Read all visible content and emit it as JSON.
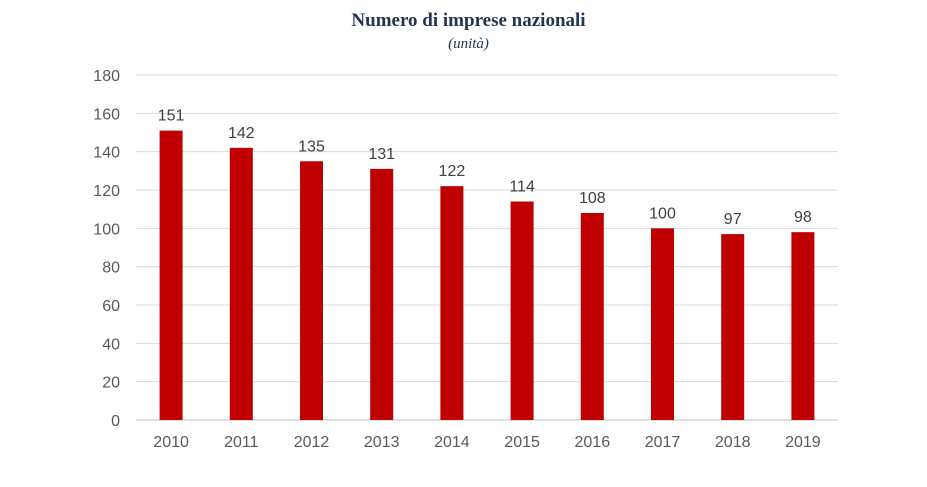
{
  "chart_data": {
    "type": "bar",
    "title": "Numero di imprese nazionali",
    "subtitle": "(unità)",
    "xlabel": "",
    "ylabel": "",
    "categories": [
      "2010",
      "2011",
      "2012",
      "2013",
      "2014",
      "2015",
      "2016",
      "2017",
      "2018",
      "2019"
    ],
    "values": [
      151,
      142,
      135,
      131,
      122,
      114,
      108,
      100,
      97,
      98
    ],
    "ylim": [
      0,
      180
    ],
    "yticks": [
      0,
      20,
      40,
      60,
      80,
      100,
      120,
      140,
      160,
      180
    ],
    "grid": true,
    "legend": "none",
    "data_labels": true,
    "colors": {
      "bar": "#c00000",
      "grid": "#d9d9d9",
      "title": "#1f3550"
    }
  }
}
